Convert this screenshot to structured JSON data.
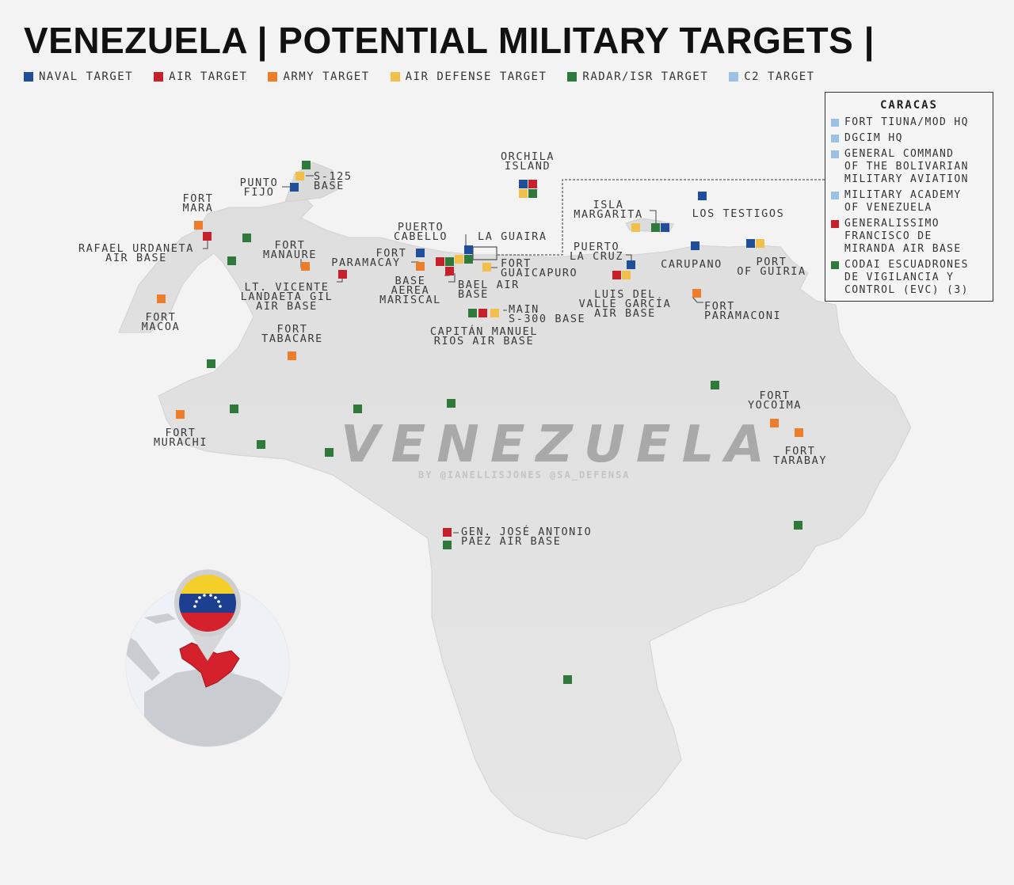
{
  "title": "VENEZUELA | POTENTIAL MILITARY TARGETS |",
  "colors": {
    "naval": "#1f4e9b",
    "air": "#c8202a",
    "army": "#ee7d2b",
    "air_defense": "#f2c04a",
    "radar": "#2f7a3a",
    "c2": "#9cc1e6"
  },
  "legend": [
    {
      "type": "naval",
      "label": "NAVAL TARGET"
    },
    {
      "type": "air",
      "label": "AIR TARGET"
    },
    {
      "type": "army",
      "label": "ARMY TARGET"
    },
    {
      "type": "air_defense",
      "label": "AIR DEFENSE TARGET"
    },
    {
      "type": "radar",
      "label": "RADAR/ISR TARGET"
    },
    {
      "type": "c2",
      "label": "C2 TARGET"
    }
  ],
  "watermark": "VENEZUELA",
  "credit": "BY @IANELLISJONES @SA_DEFENSA",
  "caracas": {
    "title": "CARACAS",
    "items": [
      {
        "type": "c2",
        "label": "FORT TIUNA/MOD HQ"
      },
      {
        "type": "c2",
        "label": "DGCIM HQ"
      },
      {
        "type": "c2",
        "label": "GENERAL COMMAND\nOF THE BOLIVARIAN\nMILITARY AVIATION"
      },
      {
        "type": "c2",
        "label": "MILITARY ACADEMY\nOF VENEZUELA"
      },
      {
        "type": "air",
        "label": "GENERALISSIMO\nFRANCISCO DE\nMIRANDA AIR BASE"
      },
      {
        "type": "radar",
        "label": "CODAI ESCUADRONES\nDE VIGILANCIA Y\nCONTROL (EVC) (3)"
      }
    ]
  },
  "place_labels": {
    "punto_fijo": "PUNTO\nFIJO",
    "s125": "S-125\nBASE",
    "fort_mara": "FORT\nMARA",
    "rafael_urdaneta": "RAFAEL URDANETA\nAIR BASE",
    "fort_manaure": "FORT\nMANAURE",
    "paramacay": "PARAMACAY",
    "fort_puerto": "FORT",
    "puerto_cabello": "PUERTO\nCABELLO",
    "orchila": "ORCHILA\nISLAND",
    "la_guaira": "LA GUAIRA",
    "fort_guaicapuro": "FORT\nGUAICAPURO",
    "base_aerea_mariscal": "BASE\nAEREA\nMARISCAL",
    "bael": "BAEL AIR\nBASE",
    "main_s300": "MAIN\nS-300 BASE",
    "capitan_manuel_rios": "CAPITÁN MANUEL\nRIOS AIR BASE",
    "lt_vicente": "LT. VICENTE\nLANDAETA GIL\nAIR BASE",
    "fort_macoa": "FORT\nMACOA",
    "fort_tabacare": "FORT\nTABACARE",
    "isla_margarita": "ISLA\nMARGARITA",
    "los_testigos": "LOS TESTIGOS",
    "puerto_la_cruz": "PUERTO\nLA CRUZ",
    "carupano": "CARUPANO",
    "port_guiria": "PORT\nOF GUIRIA",
    "luis_del_valle": "LUIS DEL\nVALLE GARCÍA\nAIR BASE",
    "fort_paramaconi": "FORT\nPARAMACONI",
    "fort_yocoima": "FORT\nYOCOIMA",
    "fort_tarabay": "FORT\nTARABAY",
    "fort_murachi": "FORT\nMURACHI",
    "gen_jose_antonio": "GEN. JOSÉ ANTONIO\nPAEZ AIR BASE"
  }
}
